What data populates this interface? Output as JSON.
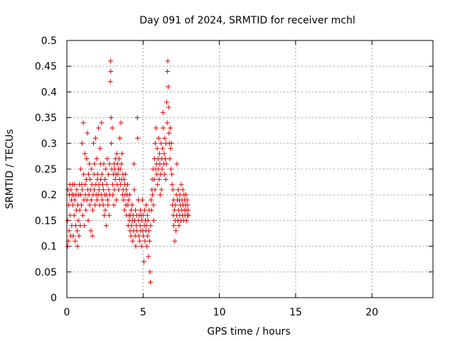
{
  "chart_data": {
    "type": "scatter",
    "title": "Day 091 of 2024, SRMTID for receiver mchl",
    "xlabel": "GPS time / hours",
    "ylabel": "SRMTID / TECUs",
    "xlim": [
      0,
      24
    ],
    "ylim": [
      0,
      0.5
    ],
    "xticks": [
      0,
      5,
      10,
      15,
      20
    ],
    "xtick_labels": [
      "0",
      "5",
      "10",
      "15",
      "20"
    ],
    "yticks": [
      0,
      0.05,
      0.1,
      0.15,
      0.2,
      0.25,
      0.3,
      0.35,
      0.4,
      0.45,
      0.5
    ],
    "ytick_labels": [
      "0",
      "0.05",
      "0.1",
      "0.15",
      "0.2",
      "0.25",
      "0.3",
      "0.35",
      "0.4",
      "0.45",
      "0.5"
    ],
    "grid": true,
    "marker": "+",
    "color": "#e00000",
    "series": [
      {
        "points": [
          [
            0.05,
            0.1
          ],
          [
            0.05,
            0.15
          ],
          [
            0.08,
            0.21
          ],
          [
            0.1,
            0.11
          ],
          [
            0.12,
            0.18
          ],
          [
            0.15,
            0.13
          ],
          [
            0.17,
            0.2
          ],
          [
            0.2,
            0.22
          ],
          [
            0.22,
            0.16
          ],
          [
            0.25,
            0.12
          ],
          [
            0.27,
            0.21
          ],
          [
            0.3,
            0.19
          ],
          [
            0.32,
            0.14
          ],
          [
            0.35,
            0.2
          ],
          [
            0.37,
            0.22
          ],
          [
            0.4,
            0.18
          ],
          [
            0.42,
            0.12
          ],
          [
            0.45,
            0.2
          ],
          [
            0.48,
            0.16
          ],
          [
            0.5,
            0.22
          ],
          [
            0.52,
            0.19
          ],
          [
            0.55,
            0.11
          ],
          [
            0.58,
            0.14
          ],
          [
            0.6,
            0.2
          ],
          [
            0.62,
            0.17
          ],
          [
            0.65,
            0.21
          ],
          [
            0.68,
            0.13
          ],
          [
            0.7,
            0.1
          ],
          [
            0.72,
            0.18
          ],
          [
            0.75,
            0.15
          ],
          [
            0.78,
            0.2
          ],
          [
            0.8,
            0.12
          ],
          [
            0.82,
            0.22
          ],
          [
            0.85,
            0.17
          ],
          [
            0.88,
            0.14
          ],
          [
            0.9,
            0.2
          ],
          [
            0.92,
            0.25
          ],
          [
            0.95,
            0.18
          ],
          [
            0.98,
            0.22
          ],
          [
            1.0,
            0.3
          ],
          [
            1.02,
            0.21
          ],
          [
            1.05,
            0.16
          ],
          [
            1.08,
            0.34
          ],
          [
            1.1,
            0.24
          ],
          [
            1.12,
            0.19
          ],
          [
            1.15,
            0.14
          ],
          [
            1.18,
            0.28
          ],
          [
            1.2,
            0.22
          ],
          [
            1.22,
            0.2
          ],
          [
            1.25,
            0.17
          ],
          [
            1.28,
            0.23
          ],
          [
            1.3,
            0.27
          ],
          [
            1.32,
            0.19
          ],
          [
            1.35,
            0.32
          ],
          [
            1.38,
            0.21
          ],
          [
            1.4,
            0.15
          ],
          [
            1.42,
            0.24
          ],
          [
            1.45,
            0.2
          ],
          [
            1.48,
            0.26
          ],
          [
            1.5,
            0.18
          ],
          [
            1.52,
            0.23
          ],
          [
            1.55,
            0.21
          ],
          [
            1.58,
            0.13
          ],
          [
            1.6,
            0.19
          ],
          [
            1.62,
            0.25
          ],
          [
            1.65,
            0.22
          ],
          [
            1.68,
            0.12
          ],
          [
            1.7,
            0.17
          ],
          [
            1.72,
            0.2
          ],
          [
            1.75,
            0.3
          ],
          [
            1.78,
            0.24
          ],
          [
            1.8,
            0.21
          ],
          [
            1.82,
            0.26
          ],
          [
            1.85,
            0.18
          ],
          [
            1.88,
            0.31
          ],
          [
            1.9,
            0.22
          ],
          [
            1.92,
            0.2
          ],
          [
            1.95,
            0.27
          ],
          [
            1.98,
            0.19
          ],
          [
            2.0,
            0.23
          ],
          [
            2.02,
            0.24
          ],
          [
            2.05,
            0.2
          ],
          [
            2.08,
            0.33
          ],
          [
            2.1,
            0.22
          ],
          [
            2.12,
            0.21
          ],
          [
            2.15,
            0.18
          ],
          [
            2.18,
            0.29
          ],
          [
            2.2,
            0.26
          ],
          [
            2.22,
            0.23
          ],
          [
            2.25,
            0.2
          ],
          [
            2.28,
            0.34
          ],
          [
            2.3,
            0.24
          ],
          [
            2.32,
            0.19
          ],
          [
            2.35,
            0.22
          ],
          [
            2.38,
            0.18
          ],
          [
            2.4,
            0.21
          ],
          [
            2.42,
            0.26
          ],
          [
            2.45,
            0.16
          ],
          [
            2.48,
            0.2
          ],
          [
            2.5,
            0.23
          ],
          [
            2.52,
            0.17
          ],
          [
            2.55,
            0.25
          ],
          [
            2.58,
            0.14
          ],
          [
            2.6,
            0.2
          ],
          [
            2.62,
            0.22
          ],
          [
            2.65,
            0.27
          ],
          [
            2.68,
            0.19
          ],
          [
            2.7,
            0.18
          ],
          [
            2.72,
            0.24
          ],
          [
            2.75,
            0.21
          ],
          [
            2.78,
            0.16
          ],
          [
            2.8,
            0.26
          ],
          [
            2.82,
            0.2
          ],
          [
            2.85,
            0.42
          ],
          [
            2.87,
            0.46
          ],
          [
            2.88,
            0.44
          ],
          [
            2.9,
            0.35
          ],
          [
            2.92,
            0.3
          ],
          [
            2.95,
            0.25
          ],
          [
            2.98,
            0.33
          ],
          [
            3.0,
            0.22
          ],
          [
            3.02,
            0.2
          ],
          [
            3.05,
            0.24
          ],
          [
            3.08,
            0.18
          ],
          [
            3.1,
            0.26
          ],
          [
            3.12,
            0.21
          ],
          [
            3.15,
            0.25
          ],
          [
            3.18,
            0.23
          ],
          [
            3.2,
            0.27
          ],
          [
            3.22,
            0.24
          ],
          [
            3.25,
            0.19
          ],
          [
            3.28,
            0.28
          ],
          [
            3.3,
            0.22
          ],
          [
            3.32,
            0.26
          ],
          [
            3.35,
            0.24
          ],
          [
            3.38,
            0.25
          ],
          [
            3.4,
            0.21
          ],
          [
            3.42,
            0.27
          ],
          [
            3.45,
            0.23
          ],
          [
            3.48,
            0.31
          ],
          [
            3.5,
            0.25
          ],
          [
            3.52,
            0.22
          ],
          [
            3.55,
            0.34
          ],
          [
            3.58,
            0.26
          ],
          [
            3.6,
            0.23
          ],
          [
            3.62,
            0.28
          ],
          [
            3.65,
            0.2
          ],
          [
            3.68,
            0.24
          ],
          [
            3.7,
            0.21
          ],
          [
            3.72,
            0.19
          ],
          [
            3.75,
            0.23
          ],
          [
            3.78,
            0.17
          ],
          [
            3.8,
            0.22
          ],
          [
            3.82,
            0.2
          ],
          [
            3.85,
            0.24
          ],
          [
            3.88,
            0.18
          ],
          [
            3.9,
            0.21
          ],
          [
            3.92,
            0.16
          ],
          [
            3.95,
            0.2
          ],
          [
            3.98,
            0.22
          ],
          [
            4.0,
            0.18
          ],
          [
            4.02,
            0.14
          ],
          [
            4.05,
            0.19
          ],
          [
            4.08,
            0.16
          ],
          [
            4.1,
            0.15
          ],
          [
            4.12,
            0.2
          ],
          [
            4.15,
            0.13
          ],
          [
            4.18,
            0.16
          ],
          [
            4.2,
            0.12
          ],
          [
            4.22,
            0.17
          ],
          [
            4.25,
            0.14
          ],
          [
            4.28,
            0.18
          ],
          [
            4.3,
            0.15
          ],
          [
            4.32,
            0.11
          ],
          [
            4.35,
            0.16
          ],
          [
            4.38,
            0.13
          ],
          [
            4.4,
            0.26
          ],
          [
            4.42,
            0.21
          ],
          [
            4.45,
            0.15
          ],
          [
            4.48,
            0.12
          ],
          [
            4.5,
            0.17
          ],
          [
            4.52,
            0.1
          ],
          [
            4.55,
            0.14
          ],
          [
            4.58,
            0.16
          ],
          [
            4.6,
            0.13
          ],
          [
            4.62,
            0.35
          ],
          [
            4.65,
            0.31
          ],
          [
            4.68,
            0.19
          ],
          [
            4.7,
            0.15
          ],
          [
            4.72,
            0.12
          ],
          [
            4.75,
            0.16
          ],
          [
            4.78,
            0.11
          ],
          [
            4.8,
            0.14
          ],
          [
            4.82,
            0.17
          ],
          [
            4.85,
            0.13
          ],
          [
            4.88,
            0.16
          ],
          [
            4.9,
            0.1
          ],
          [
            4.92,
            0.15
          ],
          [
            4.95,
            0.19
          ],
          [
            4.98,
            0.13
          ],
          [
            5.0,
            0.16
          ],
          [
            5.02,
            0.12
          ],
          [
            5.05,
            0.07
          ],
          [
            5.08,
            0.14
          ],
          [
            5.1,
            0.17
          ],
          [
            5.12,
            0.11
          ],
          [
            5.15,
            0.15
          ],
          [
            5.18,
            0.13
          ],
          [
            5.2,
            0.18
          ],
          [
            5.22,
            0.14
          ],
          [
            5.25,
            0.1
          ],
          [
            5.28,
            0.16
          ],
          [
            5.3,
            0.12
          ],
          [
            5.32,
            0.15
          ],
          [
            5.35,
            0.08
          ],
          [
            5.38,
            0.13
          ],
          [
            5.4,
            0.17
          ],
          [
            5.42,
            0.11
          ],
          [
            5.45,
            0.05
          ],
          [
            5.48,
            0.03
          ],
          [
            5.5,
            0.14
          ],
          [
            5.52,
            0.19
          ],
          [
            5.55,
            0.17
          ],
          [
            5.58,
            0.21
          ],
          [
            5.6,
            0.23
          ],
          [
            5.62,
            0.2
          ],
          [
            5.65,
            0.25
          ],
          [
            5.68,
            0.18
          ],
          [
            5.7,
            0.15
          ],
          [
            5.72,
            0.23
          ],
          [
            5.75,
            0.27
          ],
          [
            5.78,
            0.21
          ],
          [
            5.8,
            0.3
          ],
          [
            5.82,
            0.25
          ],
          [
            5.85,
            0.33
          ],
          [
            5.88,
            0.26
          ],
          [
            5.9,
            0.24
          ],
          [
            5.92,
            0.29
          ],
          [
            5.95,
            0.22
          ],
          [
            5.98,
            0.27
          ],
          [
            6.0,
            0.25
          ],
          [
            6.02,
            0.31
          ],
          [
            6.05,
            0.23
          ],
          [
            6.08,
            0.28
          ],
          [
            6.1,
            0.26
          ],
          [
            6.12,
            0.2
          ],
          [
            6.15,
            0.24
          ],
          [
            6.18,
            0.3
          ],
          [
            6.2,
            0.21
          ],
          [
            6.22,
            0.27
          ],
          [
            6.25,
            0.25
          ],
          [
            6.28,
            0.29
          ],
          [
            6.3,
            0.36
          ],
          [
            6.32,
            0.33
          ],
          [
            6.35,
            0.26
          ],
          [
            6.38,
            0.28
          ],
          [
            6.4,
            0.24
          ],
          [
            6.42,
            0.31
          ],
          [
            6.45,
            0.27
          ],
          [
            6.48,
            0.23
          ],
          [
            6.5,
            0.3
          ],
          [
            6.52,
            0.26
          ],
          [
            6.55,
            0.38
          ],
          [
            6.58,
            0.34
          ],
          [
            6.6,
            0.44
          ],
          [
            6.62,
            0.46
          ],
          [
            6.65,
            0.41
          ],
          [
            6.68,
            0.37
          ],
          [
            6.7,
            0.32
          ],
          [
            6.72,
            0.3
          ],
          [
            6.75,
            0.27
          ],
          [
            6.78,
            0.33
          ],
          [
            6.8,
            0.29
          ],
          [
            6.82,
            0.25
          ],
          [
            6.85,
            0.3
          ],
          [
            6.88,
            0.24
          ],
          [
            6.9,
            0.22
          ],
          [
            6.92,
            0.18
          ],
          [
            6.95,
            0.21
          ],
          [
            6.98,
            0.16
          ],
          [
            7.0,
            0.19
          ],
          [
            7.02,
            0.14
          ],
          [
            7.05,
            0.17
          ],
          [
            7.08,
            0.11
          ],
          [
            7.1,
            0.15
          ],
          [
            7.12,
            0.18
          ],
          [
            7.15,
            0.13
          ],
          [
            7.18,
            0.2
          ],
          [
            7.2,
            0.16
          ],
          [
            7.22,
            0.26
          ],
          [
            7.25,
            0.19
          ],
          [
            7.28,
            0.15
          ],
          [
            7.3,
            0.21
          ],
          [
            7.32,
            0.17
          ],
          [
            7.35,
            0.14
          ],
          [
            7.38,
            0.19
          ],
          [
            7.4,
            0.16
          ],
          [
            7.42,
            0.2
          ],
          [
            7.45,
            0.18
          ],
          [
            7.48,
            0.15
          ],
          [
            7.5,
            0.22
          ],
          [
            7.52,
            0.17
          ],
          [
            7.55,
            0.19
          ],
          [
            7.58,
            0.16
          ],
          [
            7.6,
            0.21
          ],
          [
            7.62,
            0.18
          ],
          [
            7.65,
            0.15
          ],
          [
            7.68,
            0.2
          ],
          [
            7.7,
            0.17
          ],
          [
            7.72,
            0.19
          ],
          [
            7.75,
            0.16
          ],
          [
            7.78,
            0.18
          ],
          [
            7.8,
            0.2
          ],
          [
            7.82,
            0.17
          ],
          [
            7.85,
            0.15
          ],
          [
            7.88,
            0.19
          ],
          [
            7.9,
            0.16
          ],
          [
            7.92,
            0.18
          ],
          [
            7.95,
            0.17
          ],
          [
            7.98,
            0.16
          ]
        ]
      }
    ]
  }
}
